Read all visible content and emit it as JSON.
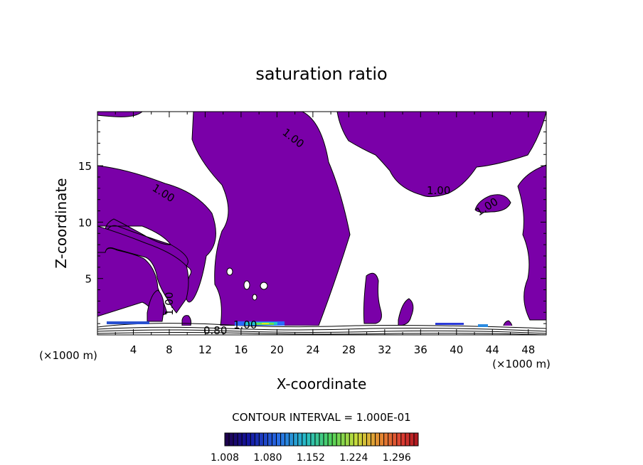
{
  "chart_data": {
    "type": "contour",
    "title": "saturation ratio",
    "xlabel": "X-coordinate",
    "ylabel": "Z-coordinate",
    "x_units": "(×1000 m)",
    "y_units": "(×1000 m)",
    "x_ticks": [
      "4",
      "8",
      "12",
      "16",
      "20",
      "24",
      "28",
      "32",
      "36",
      "40",
      "44",
      "48"
    ],
    "y_ticks": [
      "5",
      "10",
      "15"
    ],
    "xlim": [
      0,
      50
    ],
    "ylim": [
      0,
      19.8
    ],
    "contour_labels": [
      "1.00",
      "1.00",
      "1.00",
      "1.00",
      "1.00",
      "0.80",
      "1.00"
    ],
    "contour_interval_text": "CONTOUR INTERVAL = 1.000E-01",
    "colorbar": {
      "ticks": [
        "1.008",
        "1.080",
        "1.152",
        "1.224",
        "1.296"
      ],
      "range": [
        1.008,
        1.332
      ]
    },
    "fill_color": "#7a00a8"
  }
}
